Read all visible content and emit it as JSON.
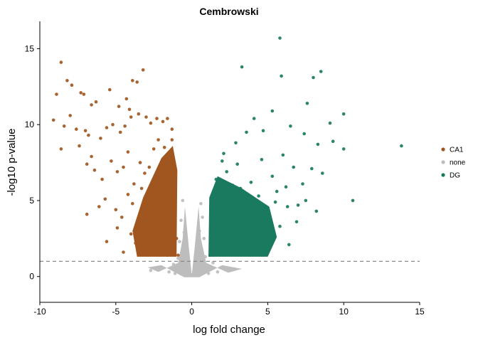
{
  "chart_data": {
    "type": "scatter",
    "title": "Cembrowski",
    "xlabel": "log fold change",
    "ylabel": "-log10 p-value",
    "xlim": [
      -10,
      15
    ],
    "ylim": [
      -1.7,
      16.8
    ],
    "xticks": [
      -10,
      -5,
      0,
      5,
      10,
      15
    ],
    "yticks": [
      0,
      5,
      10,
      15
    ],
    "threshold_y": 1.0,
    "grid": false,
    "legend_position": "right",
    "series": [
      {
        "name": "CA1",
        "color": "#a0561e",
        "points": [
          [
            -8.6,
            14.1
          ],
          [
            -8.2,
            12.9
          ],
          [
            -7.9,
            12.6
          ],
          [
            -7.3,
            12.1
          ],
          [
            -7.1,
            12.0
          ],
          [
            -8.9,
            12.0
          ],
          [
            -6.6,
            11.3
          ],
          [
            -6.3,
            11.5
          ],
          [
            -5.4,
            12.3
          ],
          [
            -4.8,
            11.2
          ],
          [
            -4.3,
            11.7
          ],
          [
            -4.1,
            11.0
          ],
          [
            -4.0,
            10.5
          ],
          [
            -3.2,
            13.6
          ],
          [
            -3.6,
            12.8
          ],
          [
            -3.9,
            12.9
          ],
          [
            -9.1,
            10.3
          ],
          [
            -8.4,
            9.9
          ],
          [
            -8.0,
            10.6
          ],
          [
            -7.6,
            9.7
          ],
          [
            -7.0,
            9.6
          ],
          [
            -6.8,
            9.3
          ],
          [
            -6.0,
            9.1
          ],
          [
            -5.6,
            9.8
          ],
          [
            -5.2,
            10.0
          ],
          [
            -4.7,
            9.5
          ],
          [
            -4.4,
            9.9
          ],
          [
            -3.5,
            10.7
          ],
          [
            -3.0,
            10.5
          ],
          [
            -2.7,
            10.1
          ],
          [
            -2.3,
            10.4
          ],
          [
            -1.9,
            10.2
          ],
          [
            -1.6,
            10.4
          ],
          [
            -1.3,
            9.7
          ],
          [
            -8.6,
            8.4
          ],
          [
            -7.4,
            8.6
          ],
          [
            -6.6,
            7.9
          ],
          [
            -6.9,
            7.4
          ],
          [
            -6.4,
            7.0
          ],
          [
            -5.9,
            6.4
          ],
          [
            -5.3,
            7.6
          ],
          [
            -4.9,
            6.9
          ],
          [
            -4.5,
            7.2
          ],
          [
            -4.2,
            8.2
          ],
          [
            -3.8,
            6.1
          ],
          [
            -3.4,
            7.5
          ],
          [
            -3.1,
            6.8
          ],
          [
            -2.8,
            7.2
          ],
          [
            -2.5,
            8.4
          ],
          [
            -2.2,
            9.0
          ],
          [
            -1.8,
            8.5
          ],
          [
            -1.5,
            8.0
          ],
          [
            -1.2,
            7.4
          ],
          [
            -6.9,
            4.1
          ],
          [
            -6.1,
            4.6
          ],
          [
            -5.7,
            5.1
          ],
          [
            -5.0,
            4.4
          ],
          [
            -4.6,
            3.9
          ],
          [
            -4.2,
            5.4
          ],
          [
            -3.9,
            4.8
          ],
          [
            -3.6,
            3.4
          ],
          [
            -3.3,
            5.8
          ],
          [
            -3.0,
            4.2
          ],
          [
            -2.7,
            3.0
          ],
          [
            -2.4,
            5.2
          ],
          [
            -2.1,
            3.6
          ],
          [
            -1.8,
            6.0
          ],
          [
            -1.6,
            2.6
          ],
          [
            -1.3,
            4.8
          ],
          [
            -1.1,
            3.2
          ],
          [
            -5.6,
            2.3
          ],
          [
            -4.5,
            1.6
          ],
          [
            -3.7,
            2.2
          ],
          [
            -3.0,
            1.5
          ],
          [
            -2.6,
            2.0
          ],
          [
            -2.0,
            1.7
          ],
          [
            -1.6,
            1.4
          ],
          [
            -1.2,
            1.9
          ],
          [
            -0.9,
            1.4
          ],
          [
            -1.0,
            2.5
          ],
          [
            -1.4,
            3.8
          ],
          [
            -2.3,
            2.6
          ],
          [
            -2.9,
            3.4
          ],
          [
            -4.0,
            2.8
          ],
          [
            -4.9,
            3.2
          ],
          [
            -1.1,
            5.8
          ],
          [
            -1.7,
            7.0
          ],
          [
            -2.0,
            6.6
          ],
          [
            -1.3,
            9.0
          ]
        ]
      },
      {
        "name": "none",
        "color": "#bdbdbd",
        "points": [
          [
            0.0,
            0.1
          ],
          [
            -0.3,
            0.4
          ],
          [
            0.4,
            0.5
          ],
          [
            -0.6,
            0.8
          ],
          [
            0.7,
            0.9
          ],
          [
            -0.9,
            1.2
          ],
          [
            0.9,
            1.3
          ],
          [
            -0.8,
            2.3
          ],
          [
            0.8,
            2.5
          ],
          [
            -0.7,
            3.7
          ],
          [
            0.7,
            3.9
          ],
          [
            -0.6,
            5.0
          ],
          [
            0.6,
            4.8
          ],
          [
            -1.2,
            0.8
          ],
          [
            1.4,
            0.9
          ],
          [
            -2.0,
            0.6
          ],
          [
            2.2,
            0.6
          ],
          [
            -2.7,
            0.4
          ],
          [
            2.8,
            0.5
          ],
          [
            -0.5,
            2.9
          ],
          [
            0.5,
            3.0
          ],
          [
            -0.4,
            1.9
          ],
          [
            0.4,
            2.1
          ],
          [
            -1.5,
            0.3
          ],
          [
            1.7,
            0.3
          ],
          [
            -1.1,
            0.2
          ],
          [
            1.1,
            0.2
          ]
        ]
      },
      {
        "name": "DG",
        "color": "#1a7a60",
        "points": [
          [
            5.8,
            15.7
          ],
          [
            3.3,
            13.8
          ],
          [
            5.9,
            13.2
          ],
          [
            8.5,
            13.5
          ],
          [
            8.0,
            13.1
          ],
          [
            10.0,
            10.7
          ],
          [
            9.1,
            10.1
          ],
          [
            7.6,
            11.4
          ],
          [
            5.3,
            10.9
          ],
          [
            4.1,
            10.4
          ],
          [
            3.6,
            9.5
          ],
          [
            2.9,
            8.8
          ],
          [
            2.1,
            8.1
          ],
          [
            4.7,
            9.6
          ],
          [
            6.5,
            9.9
          ],
          [
            7.4,
            9.4
          ],
          [
            8.3,
            8.7
          ],
          [
            9.3,
            8.9
          ],
          [
            13.8,
            8.6
          ],
          [
            10.0,
            8.4
          ],
          [
            10.6,
            5.0
          ],
          [
            1.6,
            6.4
          ],
          [
            2.3,
            6.9
          ],
          [
            3.0,
            7.4
          ],
          [
            3.9,
            6.2
          ],
          [
            4.6,
            7.7
          ],
          [
            5.3,
            6.6
          ],
          [
            6.0,
            8.0
          ],
          [
            6.7,
            7.2
          ],
          [
            7.3,
            6.1
          ],
          [
            7.9,
            7.1
          ],
          [
            8.6,
            6.8
          ],
          [
            1.4,
            4.5
          ],
          [
            2.0,
            5.4
          ],
          [
            2.6,
            4.2
          ],
          [
            3.2,
            5.8
          ],
          [
            3.8,
            3.9
          ],
          [
            4.4,
            5.3
          ],
          [
            5.0,
            4.0
          ],
          [
            5.6,
            5.6
          ],
          [
            6.3,
            4.6
          ],
          [
            6.9,
            3.6
          ],
          [
            7.5,
            5.0
          ],
          [
            8.2,
            4.3
          ],
          [
            1.3,
            2.0
          ],
          [
            1.7,
            3.1
          ],
          [
            2.2,
            1.5
          ],
          [
            2.8,
            2.6
          ],
          [
            3.4,
            1.9
          ],
          [
            4.0,
            2.9
          ],
          [
            4.6,
            1.7
          ],
          [
            5.2,
            2.4
          ],
          [
            5.8,
            3.3
          ],
          [
            6.4,
            2.1
          ],
          [
            1.2,
            1.4
          ],
          [
            1.5,
            2.6
          ],
          [
            1.9,
            3.8
          ],
          [
            2.5,
            3.4
          ],
          [
            3.6,
            2.3
          ],
          [
            4.8,
            3.0
          ],
          [
            2.0,
            7.6
          ],
          [
            2.7,
            6.0
          ],
          [
            1.6,
            5.1
          ],
          [
            3.1,
            4.8
          ],
          [
            4.3,
            4.4
          ],
          [
            5.5,
            4.9
          ],
          [
            6.2,
            5.9
          ],
          [
            7.0,
            4.7
          ]
        ]
      }
    ]
  }
}
